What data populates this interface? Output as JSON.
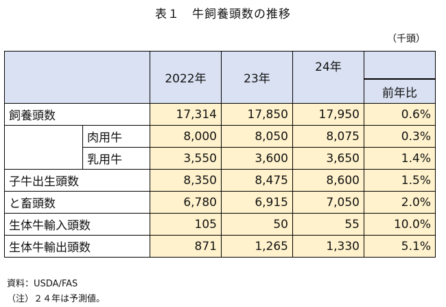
{
  "title": "表１　牛飼養頭数の推移",
  "unit": "（千頭）",
  "header": {
    "y2022": "2022年",
    "y23": "23年",
    "y24": "24年",
    "ratio": "前年比"
  },
  "rows": [
    {
      "label": "飼養頭数",
      "v2022": "17,314",
      "v23": "17,850",
      "v24": "17,950",
      "ratio": "0.6%"
    },
    {
      "label": "肉用牛",
      "v2022": "8,000",
      "v23": "8,050",
      "v24": "8,075",
      "ratio": "0.3%"
    },
    {
      "label": "乳用牛",
      "v2022": "3,550",
      "v23": "3,600",
      "v24": "3,650",
      "ratio": "1.4%"
    },
    {
      "label": "子牛出生頭数",
      "v2022": "8,350",
      "v23": "8,475",
      "v24": "8,600",
      "ratio": "1.5%"
    },
    {
      "label": "と畜頭数",
      "v2022": "6,780",
      "v23": "6,915",
      "v24": "7,050",
      "ratio": "2.0%"
    },
    {
      "label": "生体牛輸入頭数",
      "v2022": "105",
      "v23": "50",
      "v24": "55",
      "ratio": "10.0%"
    },
    {
      "label": "生体牛輸出頭数",
      "v2022": "871",
      "v23": "1,265",
      "v24": "1,330",
      "ratio": "5.1%"
    }
  ],
  "source": "資料：USDA/FAS",
  "note": "（注）２４年は予測値。",
  "colors": {
    "header_bg": "#d9e1f2",
    "value_bg": "#fff2cc"
  }
}
